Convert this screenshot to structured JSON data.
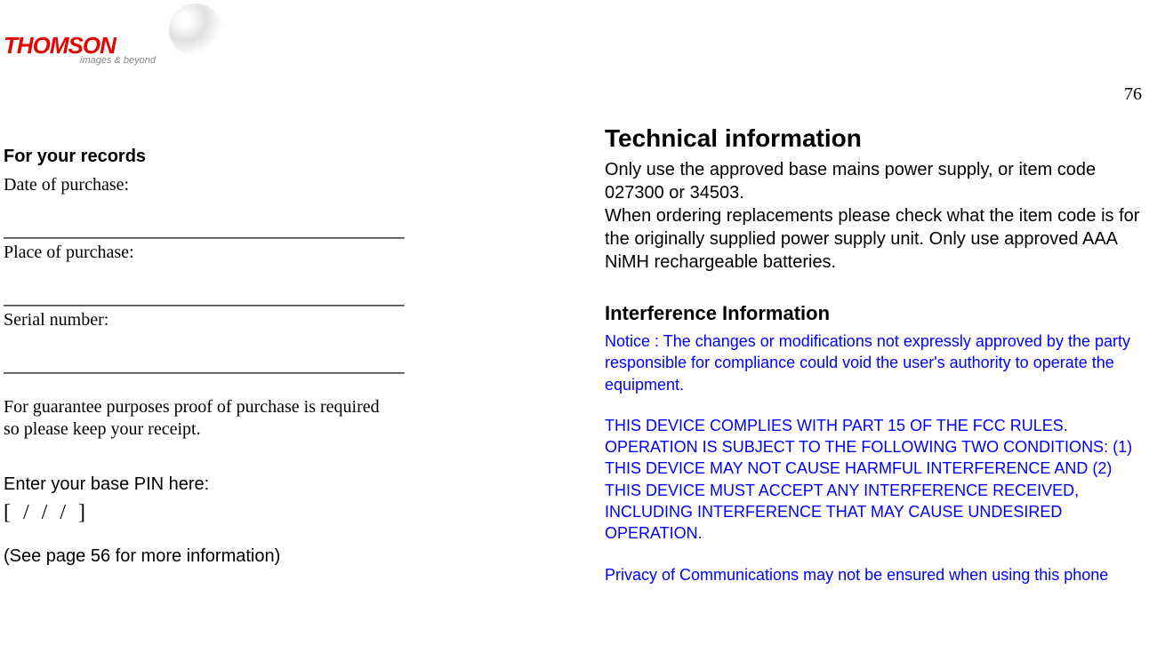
{
  "logo": {
    "brand": "THOMSON",
    "tagline": "images & beyond",
    "brand_color": "#e10600"
  },
  "page_number": "76",
  "left": {
    "records_heading": "For your records",
    "date_label": "Date of purchase:",
    "rule": "_____________________________________________",
    "place_label": "Place of purchase:",
    "serial_label": "Serial number:",
    "guarantee_line1": "For guarantee purposes proof of purchase is required",
    "guarantee_line2": "so please keep your receipt.",
    "pin_label": "Enter your base PIN here:",
    "pin_row": "[          /          /          /          ]",
    "see_page": "(See page 56 for more information)"
  },
  "right": {
    "tech_heading": "Technical information",
    "tech_body": "Only use the approved base mains power supply, or item code 027300 or 34503.\nWhen ordering replacements please check what the item code is for the originally supplied power supply unit.  Only use approved AAA NiMH rechargeable batteries.",
    "interf_heading": "Interference Information",
    "notice": "Notice : The changes or modifications not expressly approved by the party responsible for compliance could void the user's authority to operate the equipment.",
    "fcc": "THIS DEVICE COMPLIES WITH PART 15 OF THE FCC RULES. OPERATION IS SUBJECT TO THE FOLLOWING TWO CONDITIONS: (1) THIS DEVICE MAY NOT CAUSE HARMFUL INTERFERENCE AND (2) THIS DEVICE MUST ACCEPT ANY INTERFERENCE RECEIVED, INCLUDING INTERFERENCE THAT MAY CAUSE UNDESIRED OPERATION.",
    "privacy": "Privacy of Communications may not be ensured when using this phone",
    "blue_color": "#0000ff"
  },
  "colors": {
    "text": "#000000",
    "background": "#ffffff"
  },
  "fonts": {
    "serif": "Times New Roman",
    "sans": "Arial",
    "heading_size_pt": 20,
    "body_size_pt": 18
  }
}
